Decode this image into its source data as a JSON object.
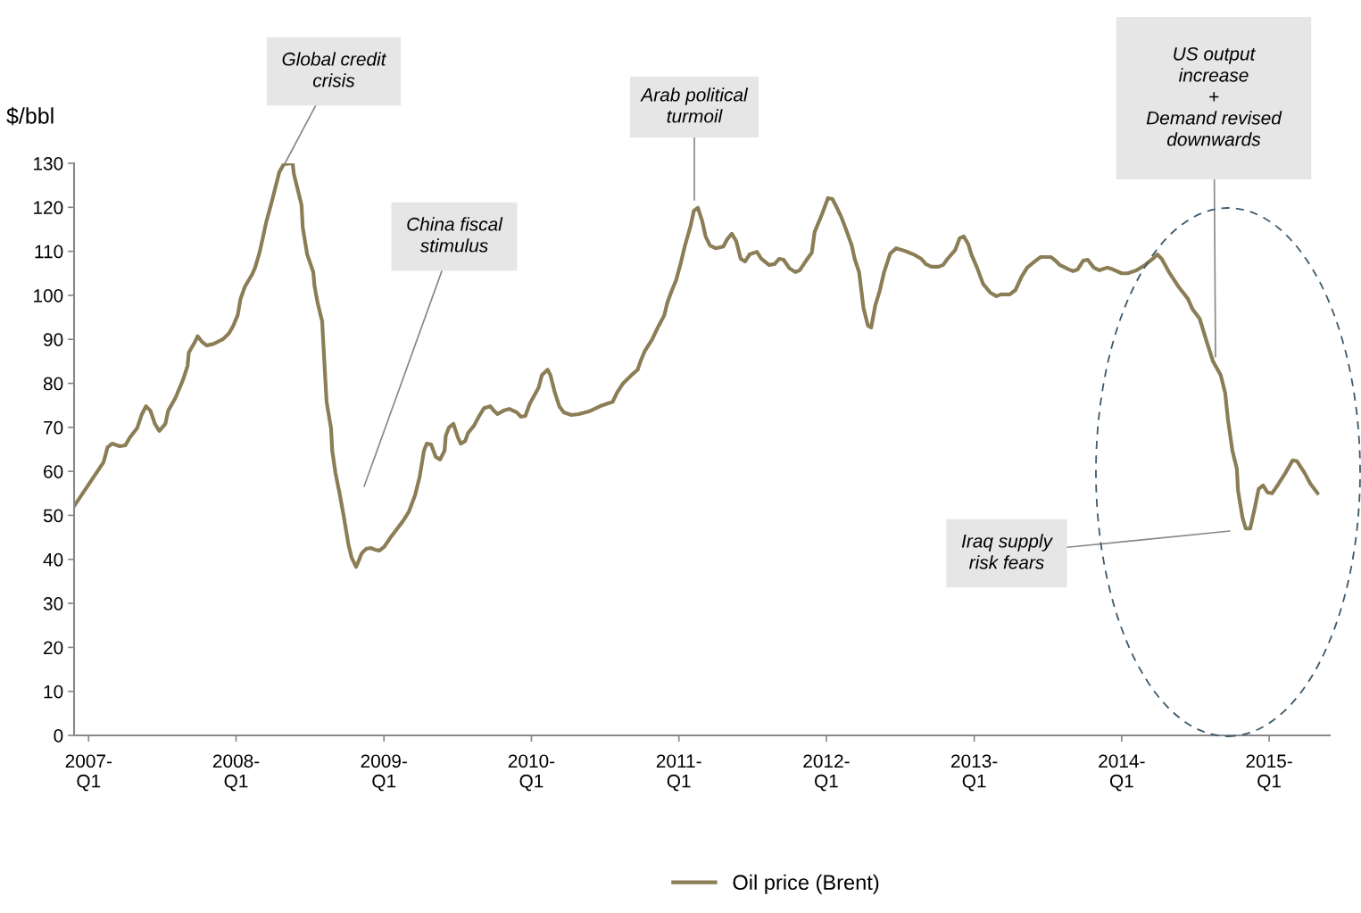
{
  "chart_data": {
    "type": "line",
    "ylabel": "$/bbl",
    "x": [
      "2006-11-26",
      "2007-01-01",
      "2007-02-07",
      "2007-02-17",
      "2007-02-28",
      "2007-03-19",
      "2007-04-02",
      "2007-04-13",
      "2007-05-01",
      "2007-05-12",
      "2007-05-23",
      "2007-06-03",
      "2007-06-14",
      "2007-06-25",
      "2007-07-10",
      "2007-07-17",
      "2007-08-04",
      "2007-08-23",
      "2007-09-03",
      "2007-09-06",
      "2007-09-21",
      "2007-09-28",
      "2007-10-09",
      "2007-10-20",
      "2007-11-07",
      "2007-11-29",
      "2007-12-14",
      "2007-12-25",
      "2008-01-05",
      "2008-01-12",
      "2008-01-23",
      "2008-02-10",
      "2008-02-17",
      "2008-02-28",
      "2008-03-08",
      "2008-03-15",
      "2008-03-30",
      "2008-04-10",
      "2008-04-17",
      "2008-04-28",
      "2008-05-20",
      "2008-05-23",
      "2008-06-03",
      "2008-06-11",
      "2008-06-14",
      "2008-06-25",
      "2008-07-10",
      "2008-07-13",
      "2008-07-21",
      "2008-08-01",
      "2008-08-04",
      "2008-08-12",
      "2008-08-23",
      "2008-08-26",
      "2008-09-03",
      "2008-09-14",
      "2008-09-24",
      "2008-10-05",
      "2008-10-13",
      "2008-10-24",
      "2008-10-27",
      "2008-11-07",
      "2008-11-18",
      "2008-11-29",
      "2008-12-10",
      "2008-12-21",
      "2009-01-01",
      "2009-01-16",
      "2009-02-03",
      "2009-02-17",
      "2009-03-04",
      "2009-03-19",
      "2009-03-30",
      "2009-04-10",
      "2009-04-17",
      "2009-04-28",
      "2009-05-01",
      "2009-05-09",
      "2009-05-20",
      "2009-05-31",
      "2009-06-03",
      "2009-06-11",
      "2009-06-22",
      "2009-07-03",
      "2009-07-10",
      "2009-07-21",
      "2009-07-28",
      "2009-08-12",
      "2009-08-26",
      "2009-09-06",
      "2009-09-21",
      "2009-10-02",
      "2009-10-09",
      "2009-10-24",
      "2009-11-07",
      "2009-11-26",
      "2009-12-06",
      "2009-12-17",
      "2009-12-28",
      "2010-01-12",
      "2010-01-19",
      "2010-01-27",
      "2010-02-10",
      "2010-02-17",
      "2010-02-28",
      "2010-03-11",
      "2010-03-22",
      "2010-04-10",
      "2010-04-28",
      "2010-05-23",
      "2010-06-11",
      "2010-06-25",
      "2010-07-21",
      "2010-08-01",
      "2010-08-15",
      "2010-09-06",
      "2010-09-21",
      "2010-09-28",
      "2010-10-09",
      "2010-10-27",
      "2010-11-11",
      "2010-11-26",
      "2010-12-03",
      "2010-12-14",
      "2010-12-25",
      "2011-01-05",
      "2011-01-16",
      "2011-01-30",
      "2011-02-07",
      "2011-02-17",
      "2011-02-28",
      "2011-03-08",
      "2011-03-19",
      "2011-04-02",
      "2011-04-21",
      "2011-05-01",
      "2011-05-12",
      "2011-05-23",
      "2011-06-03",
      "2011-06-14",
      "2011-06-25",
      "2011-07-13",
      "2011-07-24",
      "2011-08-12",
      "2011-08-26",
      "2011-09-06",
      "2011-09-17",
      "2011-10-02",
      "2011-10-16",
      "2011-10-27",
      "2011-11-15",
      "2011-11-26",
      "2011-12-03",
      "2011-12-21",
      "2012-01-05",
      "2012-01-16",
      "2012-01-27",
      "2012-02-07",
      "2012-02-21",
      "2012-03-04",
      "2012-03-11",
      "2012-03-22",
      "2012-04-02",
      "2012-04-13",
      "2012-04-21",
      "2012-05-01",
      "2012-05-12",
      "2012-05-23",
      "2012-06-07",
      "2012-06-22",
      "2012-07-13",
      "2012-08-04",
      "2012-08-23",
      "2012-09-03",
      "2012-09-17",
      "2012-10-05",
      "2012-10-16",
      "2012-10-27",
      "2012-11-15",
      "2012-11-26",
      "2012-12-06",
      "2012-12-17",
      "2012-12-25",
      "2013-01-08",
      "2013-01-23",
      "2013-02-10",
      "2013-02-25",
      "2013-03-08",
      "2013-03-30",
      "2013-04-13",
      "2013-04-28",
      "2013-05-12",
      "2013-05-31",
      "2013-06-14",
      "2013-07-10",
      "2013-07-21",
      "2013-08-01",
      "2013-08-23",
      "2013-09-03",
      "2013-09-14",
      "2013-09-28",
      "2013-10-09",
      "2013-10-24",
      "2013-11-07",
      "2013-11-26",
      "2013-12-10",
      "2014-01-01",
      "2014-01-16",
      "2014-02-07",
      "2014-02-28",
      "2014-03-19",
      "2014-03-30",
      "2014-04-10",
      "2014-04-28",
      "2014-05-23",
      "2014-06-14",
      "2014-06-25",
      "2014-07-13",
      "2014-08-01",
      "2014-08-15",
      "2014-09-03",
      "2014-09-14",
      "2014-09-21",
      "2014-10-02",
      "2014-10-13",
      "2014-10-16",
      "2014-10-27",
      "2014-11-04",
      "2014-11-15",
      "2014-11-26",
      "2014-12-06",
      "2014-12-17",
      "2014-12-28",
      "2015-01-08",
      "2015-01-23",
      "2015-02-10",
      "2015-02-28",
      "2015-03-11",
      "2015-03-30",
      "2015-04-13",
      "2015-05-01"
    ],
    "xlim": [
      "2006-11-26",
      "2015-05-31"
    ],
    "xticks": [
      {
        "value": "2007-01-01",
        "label": "2007-\nQ1"
      },
      {
        "value": "2008-01-01",
        "label": "2008-\nQ1"
      },
      {
        "value": "2009-01-01",
        "label": "2009-\nQ1"
      },
      {
        "value": "2010-01-01",
        "label": "2010-\nQ1"
      },
      {
        "value": "2011-01-01",
        "label": "2011-\nQ1"
      },
      {
        "value": "2012-01-01",
        "label": "2012-\nQ1"
      },
      {
        "value": "2013-01-01",
        "label": "2013-\nQ1"
      },
      {
        "value": "2014-01-01",
        "label": "2014-\nQ1"
      },
      {
        "value": "2015-01-01",
        "label": "2015-\nQ1"
      }
    ],
    "ylim": [
      0,
      130
    ],
    "yticks": [
      0,
      10,
      20,
      30,
      40,
      50,
      60,
      70,
      80,
      90,
      100,
      110,
      120,
      130
    ],
    "grid": false,
    "legend": "bottom",
    "marker": "none",
    "line_style": "solid",
    "series": [
      {
        "name": "Oil price (Brent)",
        "color": "#8b7d55",
        "values": [
          52.1,
          57.0,
          62.1,
          65.5,
          66.3,
          65.7,
          65.9,
          67.7,
          69.8,
          72.8,
          74.8,
          73.8,
          70.8,
          69.2,
          70.8,
          73.8,
          76.7,
          80.9,
          84.0,
          87.0,
          89.4,
          90.7,
          89.4,
          88.6,
          89.0,
          90.0,
          91.3,
          93.1,
          95.5,
          99.2,
          102.0,
          104.8,
          106.3,
          109.7,
          113.4,
          116.4,
          121.5,
          125.5,
          128.0,
          129.8,
          130.0,
          127.6,
          123.5,
          120.5,
          115.4,
          109.3,
          105.3,
          102.2,
          98.2,
          94.1,
          89.0,
          75.8,
          69.8,
          64.7,
          59.6,
          54.6,
          49.5,
          43.4,
          40.4,
          38.3,
          38.9,
          41.4,
          42.4,
          42.6,
          42.2,
          42.0,
          42.8,
          44.8,
          47.0,
          48.7,
          50.9,
          54.6,
          58.6,
          64.7,
          66.3,
          66.1,
          65.3,
          63.3,
          62.7,
          64.7,
          68.1,
          70.0,
          70.8,
          67.7,
          66.3,
          66.9,
          68.7,
          70.4,
          72.8,
          74.4,
          74.8,
          73.6,
          73.0,
          73.8,
          74.2,
          73.4,
          72.4,
          72.6,
          75.4,
          77.9,
          79.1,
          81.9,
          83.1,
          81.9,
          77.9,
          74.8,
          73.4,
          72.8,
          73.0,
          73.6,
          74.4,
          75.0,
          75.8,
          77.9,
          79.9,
          81.9,
          83.1,
          85.0,
          87.4,
          90.0,
          92.9,
          95.5,
          98.2,
          101.0,
          103.4,
          107.1,
          111.3,
          115.8,
          119.2,
          119.9,
          116.8,
          113.4,
          111.3,
          110.7,
          111.1,
          112.8,
          114.0,
          112.3,
          108.3,
          107.7,
          109.3,
          109.9,
          108.3,
          106.9,
          107.1,
          108.3,
          108.1,
          106.1,
          105.3,
          105.7,
          108.3,
          109.7,
          114.4,
          118.4,
          122.1,
          121.9,
          119.9,
          117.8,
          114.4,
          111.3,
          108.3,
          105.3,
          97.1,
          93.1,
          92.7,
          97.7,
          101.0,
          105.3,
          109.5,
          110.7,
          110.1,
          109.3,
          108.3,
          107.1,
          106.5,
          106.5,
          106.9,
          108.3,
          110.3,
          113.0,
          113.4,
          111.7,
          109.3,
          106.3,
          102.6,
          100.6,
          99.8,
          100.2,
          100.2,
          101.2,
          104.2,
          106.3,
          107.7,
          108.7,
          108.7,
          107.9,
          106.9,
          105.9,
          105.5,
          105.9,
          107.9,
          108.1,
          106.3,
          105.7,
          106.3,
          105.9,
          105.0,
          105.0,
          105.7,
          106.9,
          108.3,
          109.3,
          108.3,
          105.3,
          101.8,
          99.2,
          96.9,
          94.7,
          89.0,
          85.0,
          81.9,
          77.9,
          71.8,
          64.7,
          60.6,
          55.6,
          49.5,
          47.0,
          47.0,
          51.5,
          56.0,
          56.8,
          55.2,
          55.0,
          57.0,
          59.6,
          62.5,
          62.3,
          59.6,
          57.2,
          55.0
        ]
      }
    ],
    "annotations": [
      {
        "text": "Global credit\ncrisis",
        "x": "2008-05-01",
        "y": 130
      },
      "China fiscal\nstimulus",
      "Arab political\nturmoil",
      "US output\nincrease\n+\nDemand revised\ndownwards",
      "Iraq supply\nrisk fears"
    ]
  }
}
